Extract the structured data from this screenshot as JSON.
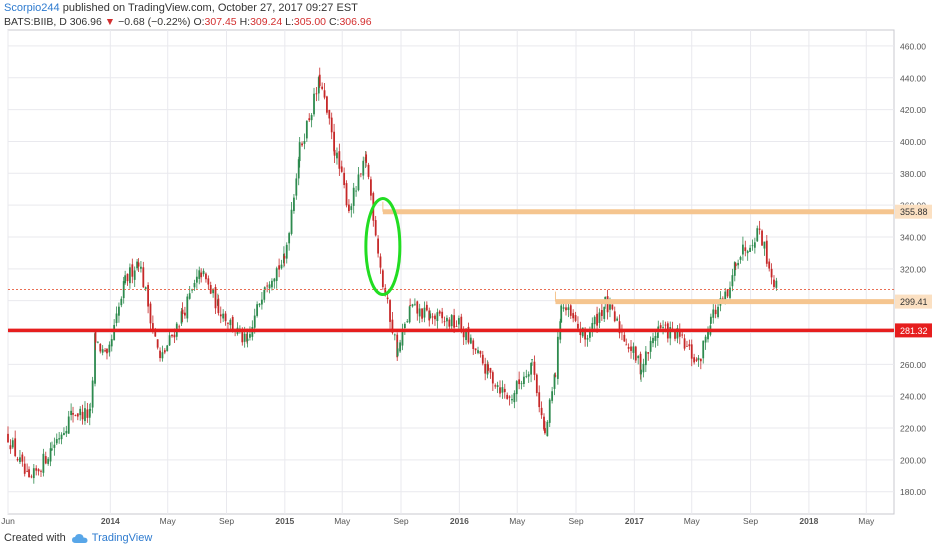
{
  "header": {
    "author": "Scorpio244",
    "published_text": "published on TradingView.com, October 27, 2017 09:27 EST",
    "symbol": "BATS:BIIB, D",
    "last": "306.96",
    "change": "−0.68 (−0.22%)",
    "o_label": "O:",
    "o_value": "307.45",
    "h_label": "H:",
    "h_value": "309.24",
    "l_label": "L:",
    "l_value": "305.00",
    "c_label": "C:",
    "c_value": "306.96"
  },
  "footer": {
    "created_with": "Created with",
    "brand": "TradingView"
  },
  "colors": {
    "up": "#2d8a4e",
    "down": "#c62828",
    "support_strong": "#e61e1e",
    "resistance_band": "#f5c58f",
    "ellipse": "#22dd22",
    "current_price_line": "#e85b3c",
    "grid": "#e9e9ee"
  },
  "chart_data": {
    "type": "candlestick",
    "symbol": "BATS:BIIB",
    "interval": "D",
    "x_axis": {
      "range": [
        "2013-06-01",
        "2018-06-28"
      ],
      "ticks": [
        {
          "label": "Jun",
          "date": "2013-06-01"
        },
        {
          "label": "2014",
          "date": "2014-01-01"
        },
        {
          "label": "May",
          "date": "2014-05-01"
        },
        {
          "label": "Sep",
          "date": "2014-09-01"
        },
        {
          "label": "2015",
          "date": "2015-01-01"
        },
        {
          "label": "May",
          "date": "2015-05-01"
        },
        {
          "label": "Sep",
          "date": "2015-09-01"
        },
        {
          "label": "2016",
          "date": "2016-01-01"
        },
        {
          "label": "May",
          "date": "2016-05-01"
        },
        {
          "label": "Sep",
          "date": "2016-09-01"
        },
        {
          "label": "2017",
          "date": "2017-01-01"
        },
        {
          "label": "May",
          "date": "2017-05-01"
        },
        {
          "label": "Sep",
          "date": "2017-09-01"
        },
        {
          "label": "2018",
          "date": "2018-01-01"
        },
        {
          "label": "May",
          "date": "2018-05-01"
        }
      ]
    },
    "y_axis": {
      "range": [
        166,
        470
      ],
      "ticks": [
        180,
        200,
        220,
        240,
        260,
        280,
        300,
        320,
        340,
        360,
        380,
        400,
        420,
        440,
        460
      ],
      "position": "right",
      "grid": true
    },
    "price_path": [
      {
        "date": "2013-06-01",
        "close": 215
      },
      {
        "date": "2013-07-15",
        "close": 185
      },
      {
        "date": "2013-09-01",
        "close": 208
      },
      {
        "date": "2013-10-15",
        "close": 230
      },
      {
        "date": "2013-11-20",
        "close": 228
      },
      {
        "date": "2013-12-01",
        "close": 276
      },
      {
        "date": "2013-12-25",
        "close": 262
      },
      {
        "date": "2014-02-01",
        "close": 312
      },
      {
        "date": "2014-03-01",
        "close": 326
      },
      {
        "date": "2014-04-15",
        "close": 262
      },
      {
        "date": "2014-06-01",
        "close": 292
      },
      {
        "date": "2014-07-10",
        "close": 318
      },
      {
        "date": "2014-08-15",
        "close": 296
      },
      {
        "date": "2014-10-15",
        "close": 272
      },
      {
        "date": "2014-11-20",
        "close": 312
      },
      {
        "date": "2014-12-31",
        "close": 325
      },
      {
        "date": "2015-02-01",
        "close": 395
      },
      {
        "date": "2015-03-15",
        "close": 438
      },
      {
        "date": "2015-04-15",
        "close": 395
      },
      {
        "date": "2015-05-15",
        "close": 358
      },
      {
        "date": "2015-06-20",
        "close": 388
      },
      {
        "date": "2015-07-25",
        "close": 310
      },
      {
        "date": "2015-08-25",
        "close": 268
      },
      {
        "date": "2015-09-20",
        "close": 295
      },
      {
        "date": "2015-11-01",
        "close": 290
      },
      {
        "date": "2015-12-31",
        "close": 285
      },
      {
        "date": "2016-03-01",
        "close": 255
      },
      {
        "date": "2016-04-15",
        "close": 238
      },
      {
        "date": "2016-06-01",
        "close": 262
      },
      {
        "date": "2016-06-28",
        "close": 215
      },
      {
        "date": "2016-07-20",
        "close": 255
      },
      {
        "date": "2016-08-01",
        "close": 298
      },
      {
        "date": "2016-09-20",
        "close": 276
      },
      {
        "date": "2016-11-01",
        "close": 298
      },
      {
        "date": "2016-12-15",
        "close": 275
      },
      {
        "date": "2017-01-15",
        "close": 258
      },
      {
        "date": "2017-02-20",
        "close": 283
      },
      {
        "date": "2017-04-01",
        "close": 278
      },
      {
        "date": "2017-05-15",
        "close": 260
      },
      {
        "date": "2017-06-10",
        "close": 290
      },
      {
        "date": "2017-07-20",
        "close": 305
      },
      {
        "date": "2017-08-01",
        "close": 326
      },
      {
        "date": "2017-09-20",
        "close": 345
      },
      {
        "date": "2017-10-15",
        "close": 316
      },
      {
        "date": "2017-10-27",
        "close": 306.96
      }
    ],
    "levels": [
      {
        "label": "355.88",
        "value": 355.88,
        "start": "2015-07-25",
        "style": "band",
        "color": "#f5c58f"
      },
      {
        "label": "299.41",
        "value": 299.41,
        "start": "2016-07-20",
        "style": "band",
        "color": "#f5c58f"
      },
      {
        "label": "281.32",
        "value": 281.32,
        "start": "2013-06-01",
        "style": "line",
        "color": "#e61e1e"
      }
    ],
    "current_price": 306.96,
    "annotations": [
      {
        "type": "ellipse",
        "center_date": "2015-07-25",
        "center_value": 334,
        "color": "#22dd22"
      }
    ]
  }
}
